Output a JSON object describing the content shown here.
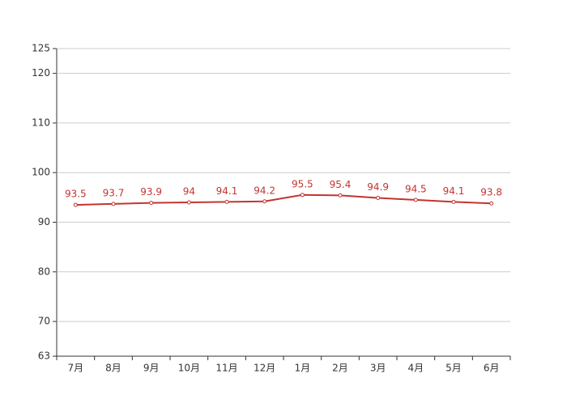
{
  "chart_data": {
    "type": "line",
    "categories": [
      "7月",
      "8月",
      "9月",
      "10月",
      "11月",
      "12月",
      "1月",
      "2月",
      "3月",
      "4月",
      "5月",
      "6月"
    ],
    "values": [
      93.5,
      93.7,
      93.9,
      94,
      94.1,
      94.2,
      95.5,
      95.4,
      94.9,
      94.5,
      94.1,
      93.8
    ],
    "color": "#c23531",
    "ylim": [
      63,
      125
    ],
    "yticks": [
      63,
      70,
      80,
      90,
      100,
      110,
      120,
      125
    ],
    "grid": true
  }
}
